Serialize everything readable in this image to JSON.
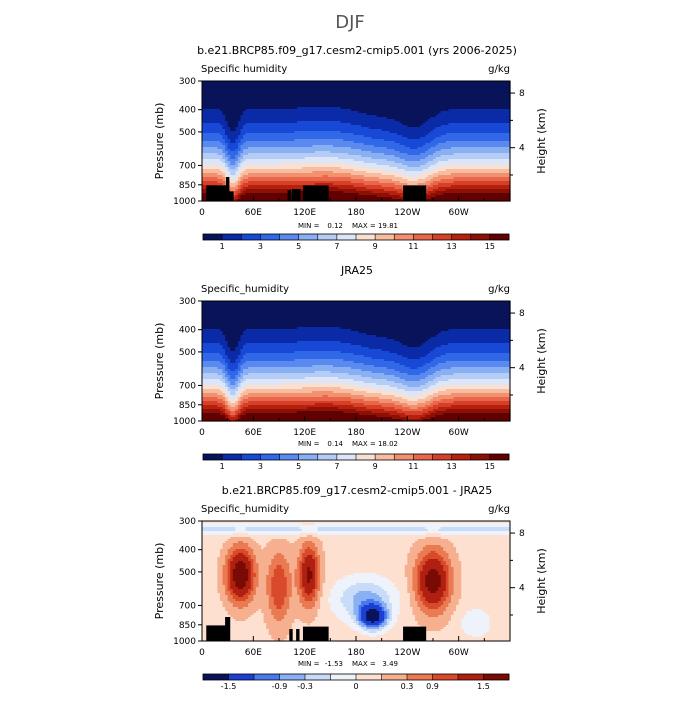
{
  "figure": {
    "title": "DJF"
  },
  "palettes": {
    "humidity": [
      "#08135a",
      "#0a2aa8",
      "#1848d6",
      "#3168e8",
      "#5a8af0",
      "#8ab0f4",
      "#b5cdf6",
      "#dde6f8",
      "#f8e0d2",
      "#f8bca0",
      "#f29070",
      "#e8664a",
      "#d64028",
      "#b8200e",
      "#8c1006",
      "#600000"
    ],
    "difference": [
      "#08135a",
      "#1a3fd2",
      "#4a78ee",
      "#8ab0f4",
      "#c8dcfa",
      "#eef2fa",
      "#fde0d0",
      "#f6b090",
      "#ea7a52",
      "#d84a2a",
      "#b02010",
      "#7a0a04"
    ]
  },
  "panels": [
    {
      "title": "b.e21.BRCP85.f09_g17.cesm2-cmip5.001 (yrs 2006-2025)",
      "left_label": "Specific humidity",
      "right_label": "g/kg",
      "stats": {
        "min_label": "MIN =",
        "min": "0.12",
        "max_label": "MAX =",
        "max": "19.81"
      },
      "yaxis_label": "Pressure (mb)",
      "y2axis_label": "Height (km)",
      "pressure_ticks": [
        "300",
        "400",
        "500",
        "700",
        "850",
        "1000"
      ],
      "height_ticks": [
        "8",
        "4"
      ],
      "lon_ticks": [
        "0",
        "60E",
        "120E",
        "180",
        "120W",
        "60W"
      ],
      "colorbar": {
        "palette": "humidity",
        "labels": [
          "1",
          "3",
          "5",
          "7",
          "9",
          "11",
          "13",
          "15"
        ]
      }
    },
    {
      "title": "JRA25",
      "left_label": "Specific_humidity",
      "right_label": "g/kg",
      "stats": {
        "min_label": "MIN =",
        "min": "0.14",
        "max_label": "MAX =",
        "max": "18.02"
      },
      "yaxis_label": "Pressure (mb)",
      "y2axis_label": "Height (km)",
      "pressure_ticks": [
        "300",
        "400",
        "500",
        "700",
        "850",
        "1000"
      ],
      "height_ticks": [
        "8",
        "4"
      ],
      "lon_ticks": [
        "0",
        "60E",
        "120E",
        "180",
        "120W",
        "60W"
      ],
      "colorbar": {
        "palette": "humidity",
        "labels": [
          "1",
          "3",
          "5",
          "7",
          "9",
          "11",
          "13",
          "15"
        ]
      }
    },
    {
      "title": "b.e21.BRCP85.f09_g17.cesm2-cmip5.001 - JRA25",
      "left_label": "Specific_humidity",
      "right_label": "g/kg",
      "stats": {
        "min_label": "MIN =",
        "min": "-1.53",
        "max_label": "MAX =",
        "max": "3.49"
      },
      "yaxis_label": "Pressure (mb)",
      "y2axis_label": "Height (km)",
      "pressure_ticks": [
        "300",
        "400",
        "500",
        "700",
        "850",
        "1000"
      ],
      "height_ticks": [
        "8",
        "4"
      ],
      "lon_ticks": [
        "0",
        "60E",
        "120E",
        "180",
        "120W",
        "60W"
      ],
      "colorbar": {
        "palette": "difference",
        "labels": [
          "-1.5",
          "-0.9",
          "-0.3",
          "0",
          "0.3",
          "0.9",
          "1.5"
        ]
      }
    }
  ],
  "chart_data": [
    {
      "type": "heatmap",
      "title": "b.e21.BRCP85.f09_g17.cesm2-cmip5.001 (yrs 2006-2025)",
      "xlabel": "",
      "ylabel": "Pressure (mb)",
      "y2label": "Height (km)",
      "units": "g/kg",
      "x_ticks": [
        "0",
        "60E",
        "120E",
        "180",
        "120W",
        "60W"
      ],
      "y_ticks": [
        300,
        400,
        500,
        700,
        850,
        1000
      ],
      "min": 0.12,
      "max": 19.81,
      "colorbar_levels": [
        1,
        3,
        5,
        7,
        9,
        11,
        13,
        15
      ]
    },
    {
      "type": "heatmap",
      "title": "JRA25",
      "xlabel": "",
      "ylabel": "Pressure (mb)",
      "y2label": "Height (km)",
      "units": "g/kg",
      "x_ticks": [
        "0",
        "60E",
        "120E",
        "180",
        "120W",
        "60W"
      ],
      "y_ticks": [
        300,
        400,
        500,
        700,
        850,
        1000
      ],
      "min": 0.14,
      "max": 18.02,
      "colorbar_levels": [
        1,
        3,
        5,
        7,
        9,
        11,
        13,
        15
      ]
    },
    {
      "type": "heatmap",
      "title": "b.e21.BRCP85.f09_g17.cesm2-cmip5.001 - JRA25",
      "xlabel": "",
      "ylabel": "Pressure (mb)",
      "y2label": "Height (km)",
      "units": "g/kg",
      "x_ticks": [
        "0",
        "60E",
        "120E",
        "180",
        "120W",
        "60W"
      ],
      "y_ticks": [
        300,
        400,
        500,
        700,
        850,
        1000
      ],
      "min": -1.53,
      "max": 3.49,
      "colorbar_levels": [
        -1.5,
        -0.9,
        -0.3,
        0,
        0.3,
        0.9,
        1.5
      ]
    }
  ]
}
